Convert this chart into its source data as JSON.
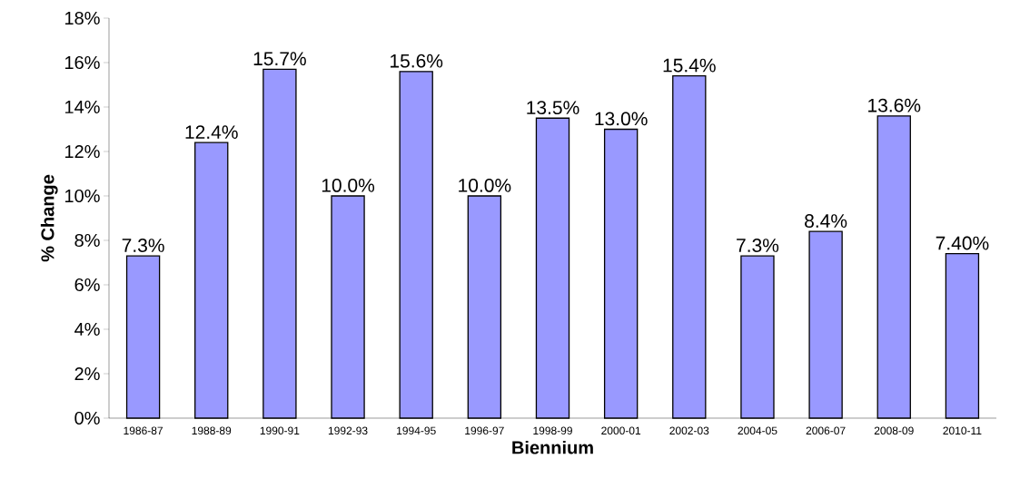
{
  "chart_data": {
    "type": "bar",
    "xlabel": "Biennium",
    "ylabel": "% Change",
    "categories": [
      "1986-87",
      "1988-89",
      "1990-91",
      "1992-93",
      "1994-95",
      "1996-97",
      "1998-99",
      "2000-01",
      "2002-03",
      "2004-05",
      "2006-07",
      "2008-09",
      "2010-11"
    ],
    "values": [
      7.3,
      12.4,
      15.7,
      10.0,
      15.6,
      10.0,
      13.5,
      13.0,
      15.4,
      7.3,
      8.4,
      13.6,
      7.4
    ],
    "value_labels": [
      "7.3%",
      "12.4%",
      "15.7%",
      "10.0%",
      "15.6%",
      "10.0%",
      "13.5%",
      "13.0%",
      "15.4%",
      "7.3%",
      "8.4%",
      "13.6%",
      "7.40%"
    ],
    "color": "#9999ff",
    "ylim": [
      0,
      18
    ],
    "yticks": [
      {
        "value": 0,
        "label": "0%"
      },
      {
        "value": 2,
        "label": "2%"
      },
      {
        "value": 4,
        "label": "4%"
      },
      {
        "value": 6,
        "label": "6%"
      },
      {
        "value": 8,
        "label": "8%"
      },
      {
        "value": 10,
        "label": "10%"
      },
      {
        "value": 12,
        "label": "12%"
      },
      {
        "value": 14,
        "label": "14%"
      },
      {
        "value": 16,
        "label": "16%"
      },
      {
        "value": 18,
        "label": "18%"
      }
    ]
  }
}
